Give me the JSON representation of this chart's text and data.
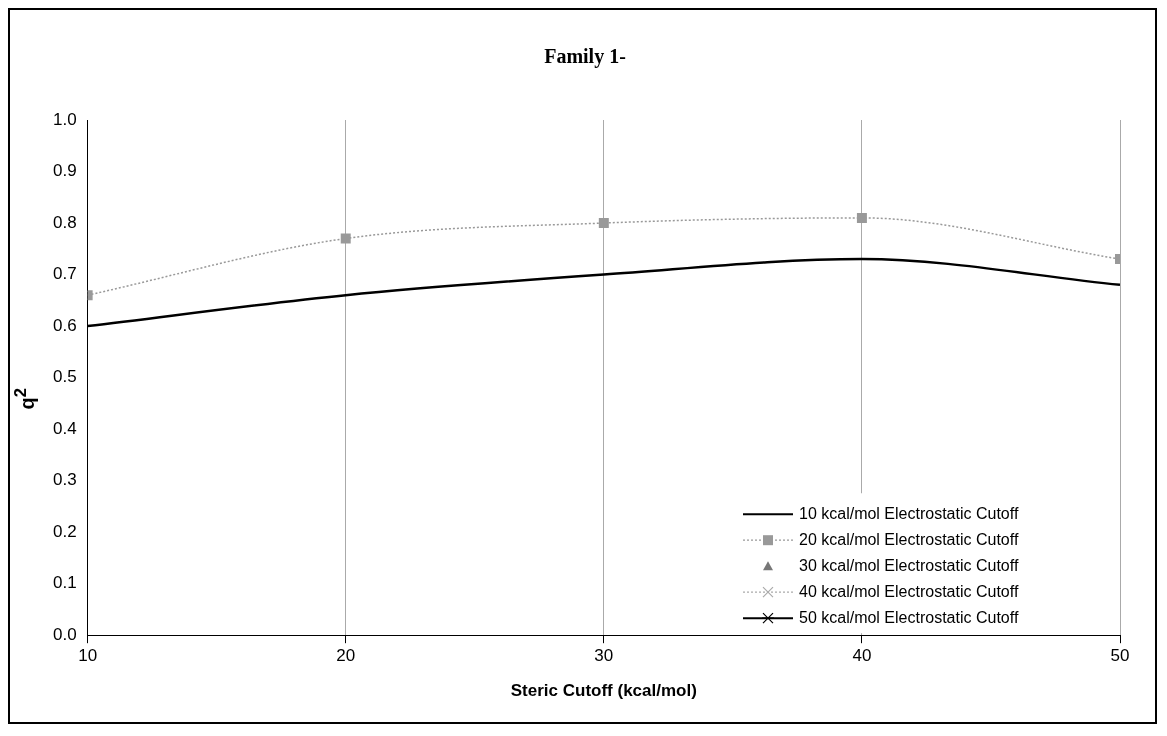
{
  "chart_data": {
    "type": "line",
    "title": "Family 1-",
    "xlabel": "Steric Cutoff (kcal/mol)",
    "ylabel": "q$^{2}$",
    "x": [
      10,
      20,
      30,
      40,
      50
    ],
    "series": [
      {
        "name": "10 kcal/mol Electrostatic Cutoff",
        "color": "#000000",
        "values": [
          0.6,
          0.66,
          0.7,
          0.73,
          0.68
        ],
        "line_style": "solid",
        "marker": "none"
      },
      {
        "name": "20 kcal/mol Electrostatic Cutoff",
        "color": "#999999",
        "values": [
          0.66,
          0.77,
          0.8,
          0.81,
          0.73
        ],
        "line_style": "dotted",
        "marker": "square"
      },
      {
        "name": "30 kcal/mol Electrostatic Cutoff",
        "color": "#777777",
        "values": [
          null,
          null,
          null,
          null,
          null
        ],
        "type": "scatter",
        "marker": "triangle"
      },
      {
        "name": "40 kcal/mol Electrostatic Cutoff",
        "color": "#aaaaaa",
        "values": [
          null,
          null,
          null,
          null,
          null
        ],
        "line_style": "dotted",
        "marker": "cross"
      },
      {
        "name": "50 kcal/mol Electrostatic Cutoff",
        "color": "#000000",
        "values": [
          null,
          null,
          null,
          null,
          null
        ],
        "line_style": "solid",
        "marker": "star"
      }
    ],
    "xlim": [
      10,
      50
    ],
    "xticks": [
      10,
      20,
      30,
      40,
      50
    ],
    "ylim": [
      0,
      1
    ],
    "yticks": [
      {
        "value": 0,
        "label": "0.0"
      },
      {
        "value": 0.1,
        "label": "0.1"
      },
      {
        "value": 0.2,
        "label": "0.2"
      },
      {
        "value": 0.3,
        "label": "0.3"
      },
      {
        "value": 0.4,
        "label": "0.4"
      },
      {
        "value": 0.5,
        "label": "0.5"
      },
      {
        "value": 0.6,
        "label": "0.6"
      },
      {
        "value": 0.7,
        "label": "0.7"
      },
      {
        "value": 0.8,
        "label": "0.8"
      },
      {
        "value": 0.9,
        "label": "0.9"
      },
      {
        "value": 1,
        "label": "1.0"
      }
    ],
    "grid": "x",
    "legend": "bottom right"
  }
}
